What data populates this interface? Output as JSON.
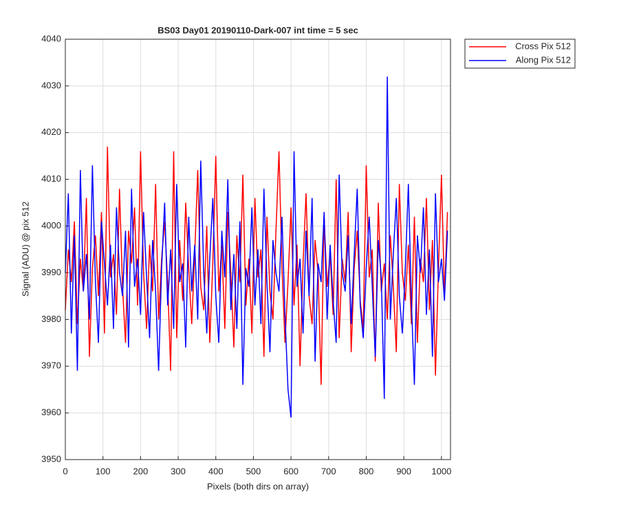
{
  "chart_data": {
    "type": "line",
    "title": "BS03 Day01 20190110-Dark-007 int time = 5 sec",
    "x_label": "Pixels (both dirs on array)",
    "y_label": "Signal (ADU) @ pix 512",
    "x": [
      0,
      8,
      16,
      24,
      32,
      40,
      48,
      56,
      64,
      72,
      80,
      88,
      96,
      104,
      112,
      120,
      128,
      136,
      144,
      152,
      160,
      168,
      176,
      184,
      192,
      200,
      208,
      216,
      224,
      232,
      240,
      248,
      256,
      264,
      272,
      280,
      288,
      296,
      304,
      312,
      320,
      328,
      336,
      344,
      352,
      360,
      368,
      376,
      384,
      392,
      400,
      408,
      416,
      424,
      432,
      440,
      448,
      456,
      464,
      472,
      480,
      488,
      496,
      504,
      512,
      520,
      528,
      536,
      544,
      552,
      560,
      568,
      576,
      584,
      592,
      600,
      608,
      616,
      624,
      632,
      640,
      648,
      656,
      664,
      672,
      680,
      688,
      696,
      704,
      712,
      720,
      728,
      736,
      744,
      752,
      760,
      768,
      776,
      784,
      792,
      800,
      808,
      816,
      824,
      832,
      840,
      848,
      856,
      864,
      872,
      880,
      888,
      896,
      904,
      912,
      920,
      928,
      936,
      944,
      952,
      960,
      968,
      976,
      984,
      992,
      1000,
      1008,
      1016
    ],
    "series": [
      {
        "name": "Cross Pix 512",
        "color": "#ff0000",
        "values": [
          3982,
          3995,
          3988,
          4001,
          3979,
          3993,
          3986,
          4006,
          3972,
          3991,
          3998,
          3985,
          4003,
          3977,
          4017,
          3989,
          3994,
          3981,
          4008,
          3987,
          3975,
          3999,
          3992,
          4004,
          3983,
          4016,
          3990,
          3978,
          3996,
          3986,
          4009,
          3980,
          3993,
          4001,
          3988,
          3969,
          4016,
          3976,
          3997,
          3984,
          4005,
          3991,
          3979,
          3994,
          4012,
          3987,
          3982,
          4000,
          3975,
          3992,
          4015,
          3986,
          3996,
          3978,
          4003,
          3990,
          3974,
          3998,
          3988,
          4011,
          3983,
          3993,
          3977,
          4006,
          3989,
          3995,
          3972,
          4002,
          3986,
          3980,
          3999,
          4016,
          3991,
          3975,
          3988,
          4004,
          3983,
          3996,
          3970,
          3992,
          4007,
          3985,
          3979,
          3997,
          3990,
          3966,
          4002,
          3987,
          3994,
          3981,
          4010,
          3976,
          3993,
          3988,
          4003,
          3973,
          3991,
          3999,
          3984,
          3978,
          4013,
          3989,
          3995,
          3971,
          4005,
          3986,
          3992,
          3980,
          3998,
          3987,
          3973,
          4009,
          3990,
          3984,
          3996,
          3979,
          4002,
          3975,
          3993,
          3988,
          4006,
          3982,
          3997,
          3968,
          3991,
          4011,
          3985,
          4003
        ]
      },
      {
        "name": "Along Pix 512",
        "color": "#0000ff",
        "values": [
          3990,
          4007,
          3977,
          3998,
          3969,
          4012,
          3986,
          3994,
          3980,
          4013,
          3988,
          3975,
          4001,
          3992,
          3983,
          3996,
          3978,
          4004,
          3990,
          3985,
          3999,
          3974,
          4008,
          3987,
          3993,
          3981,
          4003,
          3989,
          3976,
          3997,
          3986,
          3969,
          3991,
          4005,
          3983,
          3995,
          3978,
          4009,
          3988,
          3992,
          3974,
          4002,
          3986,
          3996,
          3980,
          4014,
          3990,
          3977,
          3993,
          4006,
          3985,
          3975,
          3999,
          3989,
          4010,
          3982,
          3994,
          3978,
          4001,
          3966,
          3991,
          3987,
          4004,
          3983,
          3995,
          3979,
          4008,
          3988,
          3973,
          3997,
          3990,
          3986,
          4002,
          3981,
          3965,
          3959,
          4016,
          3987,
          3993,
          3977,
          3999,
          3985,
          4006,
          3971,
          3992,
          3988,
          4003,
          3980,
          3996,
          3984,
          3975,
          4011,
          3990,
          3986,
          3998,
          3979,
          3994,
          4008,
          3983,
          3976,
          3991,
          4002,
          3987,
          3972,
          3997,
          3989,
          3963,
          4032,
          3980,
          3994,
          4006,
          3985,
          3977,
          3991,
          4009,
          3984,
          3966,
          3998,
          3990,
          4004,
          3981,
          3995,
          3972,
          4007,
          3988,
          3993,
          3984,
          3999
        ]
      }
    ],
    "xlim": [
      0,
      1024
    ],
    "xticks": [
      0,
      100,
      200,
      300,
      400,
      500,
      600,
      700,
      800,
      900,
      1000
    ],
    "ylim": [
      3950,
      4040
    ],
    "yticks": [
      3950,
      3960,
      3970,
      3980,
      3990,
      4000,
      4010,
      4020,
      4030,
      4040
    ],
    "grid": true,
    "legend": "outside-top-right"
  }
}
